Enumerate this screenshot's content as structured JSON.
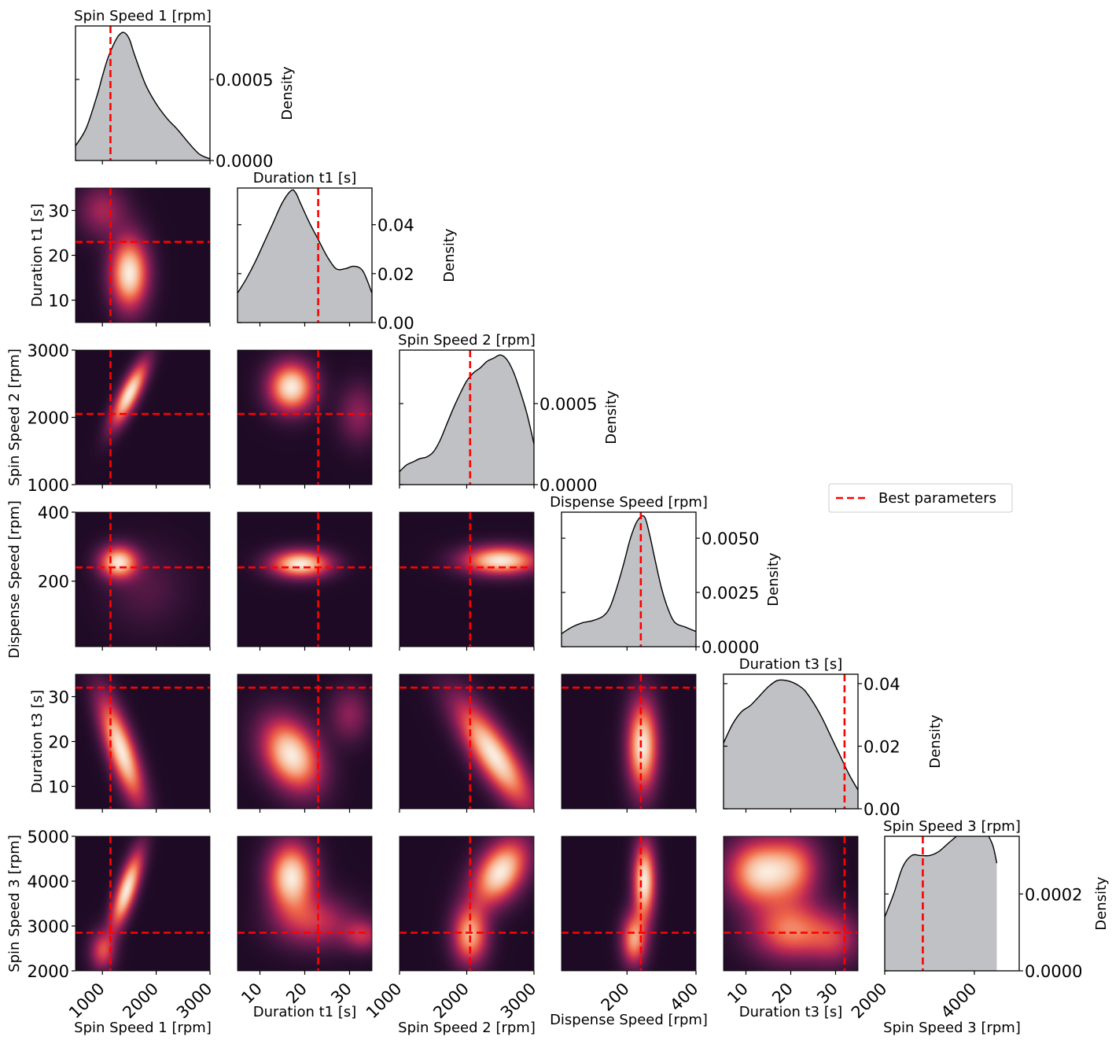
{
  "chart_data": {
    "type": "pairplot",
    "description_note": "",
    "parameters": [
      {
        "label": "Spin Speed 1 [rpm]",
        "range": [
          500,
          3000
        ],
        "ticks": [
          1000,
          2000,
          3000
        ],
        "best": 1150
      },
      {
        "label": "Duration t1 [s]",
        "range": [
          5,
          35
        ],
        "ticks": [
          10,
          20,
          30
        ],
        "best": 23
      },
      {
        "label": "Spin Speed 2 [rpm]",
        "range": [
          1000,
          3000
        ],
        "ticks": [
          1000,
          2000,
          3000
        ],
        "best": 2050
      },
      {
        "label": "Dispense Speed [rpm]",
        "range": [
          10,
          400
        ],
        "ticks": [
          200,
          400
        ],
        "best": 240
      },
      {
        "label": "Duration t3 [s]",
        "range": [
          5,
          35
        ],
        "ticks": [
          10,
          20,
          30
        ],
        "best": 32
      },
      {
        "label": "Spin Speed 3 [rpm]",
        "range": [
          2000,
          5000
        ],
        "ticks": [
          2000,
          4000
        ],
        "best": 2850
      }
    ],
    "y_tick_labels": [
      [
        "10",
        "20",
        "30"
      ],
      [
        "1000",
        "2000",
        "3000"
      ],
      [
        "200",
        "400"
      ],
      [
        "10",
        "20",
        "30"
      ],
      [
        "2000",
        "3000",
        "4000",
        "5000"
      ]
    ],
    "x_tick_labels": [
      [
        "1000",
        "2000",
        "3000"
      ],
      [
        "10",
        "20",
        "30"
      ],
      [
        "1000",
        "2000",
        "3000"
      ],
      [
        "200",
        "400"
      ],
      [
        "10",
        "20",
        "30"
      ],
      [
        "2000",
        "4000"
      ]
    ],
    "density_ylabel": "Density",
    "density_ticks": [
      {
        "values": [
          0.0,
          0.0005
        ],
        "labels": [
          "0.0000",
          "0.0005"
        ],
        "max": 0.00083
      },
      {
        "values": [
          0.0,
          0.02,
          0.04
        ],
        "labels": [
          "0.00",
          "0.02",
          "0.04"
        ],
        "max": 0.055
      },
      {
        "values": [
          0.0,
          0.0005
        ],
        "labels": [
          "0.0000",
          "0.0005"
        ],
        "max": 0.00083
      },
      {
        "values": [
          0.0,
          0.0025,
          0.005
        ],
        "labels": [
          "0.0000",
          "0.0025",
          "0.0050"
        ],
        "max": 0.0062
      },
      {
        "values": [
          0.0,
          0.02,
          0.04
        ],
        "labels": [
          "0.00",
          "0.02",
          "0.04"
        ],
        "max": 0.043
      },
      {
        "values": [
          0.0,
          0.0002
        ],
        "labels": [
          "0.0000",
          "0.0002"
        ],
        "max": 0.00035
      }
    ],
    "density_curves": [
      {
        "x": [
          500,
          700,
          900,
          1000,
          1100,
          1200,
          1300,
          1400,
          1500,
          1600,
          1800,
          2000,
          2200,
          2400,
          2600,
          2800,
          3000
        ],
        "y": [
          9e-05,
          0.0002,
          0.0004,
          0.00052,
          0.00063,
          0.00071,
          0.00077,
          0.00079,
          0.00075,
          0.00065,
          0.00047,
          0.00035,
          0.00026,
          0.00019,
          0.00011,
          4e-05,
          1e-05
        ]
      },
      {
        "x": [
          5,
          7,
          9,
          11,
          13,
          15,
          17,
          18,
          19,
          21,
          23,
          25,
          27,
          29,
          31,
          33,
          35
        ],
        "y": [
          0.012,
          0.018,
          0.025,
          0.033,
          0.041,
          0.049,
          0.054,
          0.053,
          0.049,
          0.041,
          0.034,
          0.027,
          0.022,
          0.022,
          0.023,
          0.021,
          0.012
        ]
      },
      {
        "x": [
          1000,
          1100,
          1200,
          1300,
          1400,
          1500,
          1600,
          1700,
          1800,
          1900,
          2000,
          2100,
          2200,
          2300,
          2400,
          2500,
          2600,
          2700,
          2800,
          2900,
          3000
        ],
        "y": [
          8e-05,
          0.00012,
          0.00014,
          0.00016,
          0.00017,
          0.0002,
          0.00027,
          0.00037,
          0.00047,
          0.00056,
          0.00064,
          0.00069,
          0.00072,
          0.00076,
          0.00078,
          0.0008,
          0.00077,
          0.00069,
          0.00057,
          0.00043,
          0.00025
        ]
      },
      {
        "x": [
          10,
          40,
          70,
          100,
          130,
          150,
          170,
          190,
          210,
          230,
          250,
          265,
          280,
          300,
          320,
          340,
          370,
          400
        ],
        "y": [
          0.0006,
          0.0009,
          0.0011,
          0.0012,
          0.0014,
          0.0018,
          0.0027,
          0.0038,
          0.005,
          0.0058,
          0.006,
          0.0052,
          0.0041,
          0.0027,
          0.0017,
          0.0011,
          0.0009,
          0.0007
        ]
      },
      {
        "x": [
          5,
          7,
          9,
          11,
          13,
          15,
          17,
          19,
          21,
          23,
          25,
          27,
          29,
          31,
          33,
          35
        ],
        "y": [
          0.021,
          0.027,
          0.031,
          0.033,
          0.036,
          0.039,
          0.041,
          0.041,
          0.04,
          0.038,
          0.034,
          0.029,
          0.023,
          0.017,
          0.011,
          0.006
        ]
      },
      {
        "x": [
          2000,
          2200,
          2400,
          2600,
          2800,
          3000,
          3200,
          3400,
          3600,
          3800,
          4000,
          4200,
          4400,
          4500
        ],
        "y": [
          0.00014,
          0.0002,
          0.00027,
          0.0003,
          0.0003,
          0.0003,
          0.00031,
          0.00033,
          0.00035,
          0.00037,
          0.00038,
          0.00037,
          0.00033,
          0.00028
        ]
      }
    ],
    "heatmap_colormap": "rocket",
    "heatmap_blobs": {
      "1,0": [
        {
          "x": 1500,
          "y": 16,
          "sx": 240,
          "sy": 5.5,
          "rho": 0,
          "w": 1.0
        },
        {
          "x": 1000,
          "y": 30,
          "sx": 300,
          "sy": 4,
          "rho": 0,
          "w": 0.35
        }
      ],
      "2,0": [
        {
          "x": 1500,
          "y": 2350,
          "sx": 230,
          "sy": 330,
          "rho": 0.8,
          "w": 1.0
        }
      ],
      "2,1": [
        {
          "x": 17,
          "y": 2450,
          "sx": 3.5,
          "sy": 250,
          "rho": 0,
          "w": 1.0
        },
        {
          "x": 32,
          "y": 2050,
          "sx": 3,
          "sy": 300,
          "rho": 0,
          "w": 0.3
        }
      ],
      "3,0": [
        {
          "x": 1300,
          "y": 255,
          "sx": 240,
          "sy": 32,
          "rho": 0,
          "w": 1.0
        },
        {
          "x": 1800,
          "y": 180,
          "sx": 500,
          "sy": 80,
          "rho": 0,
          "w": 0.15
        }
      ],
      "3,1": [
        {
          "x": 19,
          "y": 250,
          "sx": 4.5,
          "sy": 27,
          "rho": 0,
          "w": 1.0
        }
      ],
      "3,2": [
        {
          "x": 2500,
          "y": 260,
          "sx": 380,
          "sy": 28,
          "rho": 0,
          "w": 1.0
        }
      ],
      "4,0": [
        {
          "x": 1350,
          "y": 18,
          "sx": 280,
          "sy": 8,
          "rho": -0.75,
          "w": 1.0
        }
      ],
      "4,1": [
        {
          "x": 17,
          "y": 17,
          "sx": 4.5,
          "sy": 5.5,
          "rho": -0.3,
          "w": 1.0
        },
        {
          "x": 30,
          "y": 26,
          "sx": 3,
          "sy": 4,
          "rho": 0,
          "w": 0.3
        }
      ],
      "4,2": [
        {
          "x": 2400,
          "y": 17,
          "sx": 380,
          "sy": 8,
          "rho": -0.8,
          "w": 1.0
        }
      ],
      "4,3": [
        {
          "x": 245,
          "y": 19,
          "sx": 30,
          "sy": 7,
          "rho": 0,
          "w": 1.0
        }
      ],
      "5,0": [
        {
          "x": 1450,
          "y": 3800,
          "sx": 200,
          "sy": 600,
          "rho": 0.75,
          "w": 1.0
        },
        {
          "x": 1000,
          "y": 2450,
          "sx": 160,
          "sy": 300,
          "rho": 0,
          "w": 0.5
        }
      ],
      "5,1": [
        {
          "x": 17,
          "y": 4100,
          "sx": 3.5,
          "sy": 520,
          "rho": 0,
          "w": 1.0
        },
        {
          "x": 22,
          "y": 3100,
          "sx": 6,
          "sy": 400,
          "rho": 0,
          "w": 0.45
        },
        {
          "x": 33,
          "y": 2800,
          "sx": 3,
          "sy": 250,
          "rho": 0,
          "w": 0.4
        }
      ],
      "5,2": [
        {
          "x": 2500,
          "y": 4200,
          "sx": 280,
          "sy": 500,
          "rho": 0.4,
          "w": 1.0
        },
        {
          "x": 2050,
          "y": 2800,
          "sx": 180,
          "sy": 450,
          "rho": 0,
          "w": 0.8
        }
      ],
      "5,3": [
        {
          "x": 250,
          "y": 4000,
          "sx": 22,
          "sy": 600,
          "rho": 0,
          "w": 1.0
        },
        {
          "x": 220,
          "y": 2700,
          "sx": 25,
          "sy": 400,
          "rho": 0,
          "w": 0.75
        }
      ],
      "5,4": [
        {
          "x": 13,
          "y": 4200,
          "sx": 5,
          "sy": 500,
          "rho": 0,
          "w": 1.0
        },
        {
          "x": 21,
          "y": 4300,
          "sx": 4,
          "sy": 500,
          "rho": 0,
          "w": 0.6
        },
        {
          "x": 20,
          "y": 2900,
          "sx": 6,
          "sy": 450,
          "rho": 0,
          "w": 0.75
        },
        {
          "x": 30,
          "y": 2700,
          "sx": 4,
          "sy": 400,
          "rho": 0,
          "w": 0.4
        }
      ]
    },
    "legend": {
      "label": "Best parameters",
      "color": "#ff0000",
      "placement": "right"
    },
    "fill_color": "#c0c1c5",
    "line_color": "#000000",
    "best_line_color": "#ff0000"
  }
}
